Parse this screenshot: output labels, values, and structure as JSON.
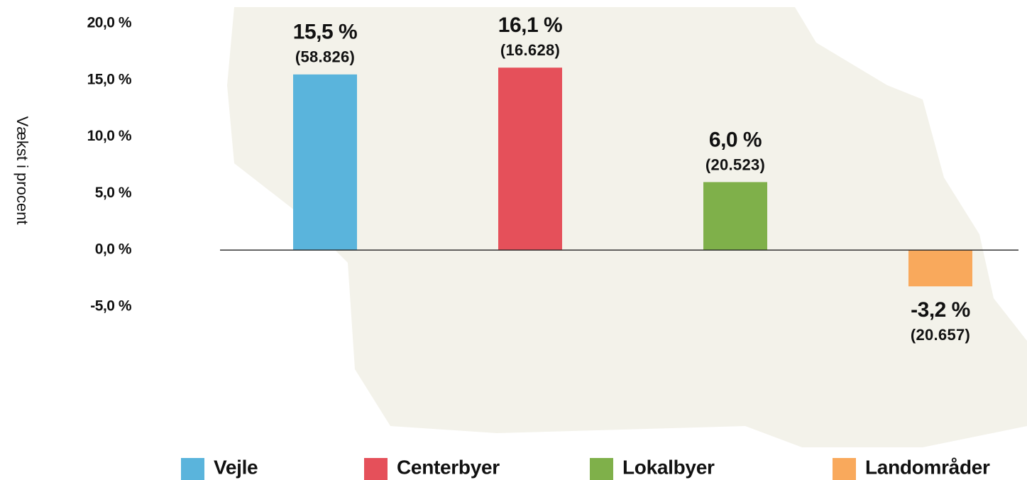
{
  "chart_data": {
    "type": "bar",
    "y_label": "Vækst i procent",
    "categories": [
      "Vejle",
      "Centerbyer",
      "Lokalbyer",
      "Landområder"
    ],
    "values": [
      15.5,
      16.1,
      6.0,
      -3.2
    ],
    "value_labels": [
      "15,5 %",
      "16,1 %",
      "6,0 %",
      "-3,2 %"
    ],
    "counts": [
      58826,
      16628,
      20523,
      20657
    ],
    "count_labels": [
      "(58.826)",
      "(16.628)",
      "(20.523)",
      "(20.657)"
    ],
    "colors": [
      "#5ab4dc",
      "#e5505a",
      "#7fb04a",
      "#f9a95c"
    ],
    "ylim": [
      -5,
      20
    ],
    "yticks": [
      {
        "value": 20,
        "label": "20,0 %"
      },
      {
        "value": 15,
        "label": "15,0 %"
      },
      {
        "value": 10,
        "label": "10,0 %"
      },
      {
        "value": 5,
        "label": "5,0 %"
      },
      {
        "value": 0,
        "label": "0,0 %"
      },
      {
        "value": -5,
        "label": "-5,0 %"
      }
    ],
    "legend": "bottom"
  }
}
